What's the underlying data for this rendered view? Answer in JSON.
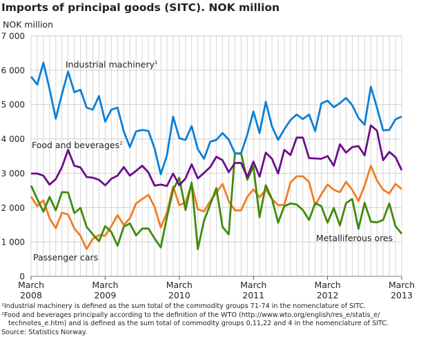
{
  "chart_data": {
    "type": "line",
    "title": "Imports of principal goods (SITC). NOK million",
    "ylabel": "NOK million",
    "xlabel": "",
    "ylim": [
      0,
      7000
    ],
    "yticks": [
      0,
      1000,
      2000,
      3000,
      4000,
      5000,
      6000,
      7000
    ],
    "ytick_labels": [
      "0",
      "1 000",
      "2 000",
      "3 000",
      "4 000",
      "5 000",
      "6 000",
      "7 000"
    ],
    "x_start": "March 2008",
    "x_end": "March 2013",
    "x_frequency": "monthly",
    "xtick_labels": [
      {
        "month": "March",
        "year": "2008",
        "index": 0
      },
      {
        "month": "March",
        "year": "2009",
        "index": 12
      },
      {
        "month": "March",
        "year": "2010",
        "index": 24
      },
      {
        "month": "March",
        "year": "2011",
        "index": 36
      },
      {
        "month": "March",
        "year": "2012",
        "index": 48
      },
      {
        "month": "March",
        "year": "2013",
        "index": 60
      }
    ],
    "grid": true,
    "series": [
      {
        "name": "Industrial machinery",
        "sup": "1",
        "color": "#0b7fd6",
        "values": [
          5810,
          5580,
          6220,
          5450,
          4590,
          5310,
          5960,
          5360,
          5430,
          4910,
          4850,
          5250,
          4500,
          4850,
          4910,
          4220,
          3760,
          4220,
          4260,
          4230,
          3720,
          2970,
          3520,
          4650,
          4020,
          3970,
          4370,
          3700,
          3420,
          3920,
          3970,
          4170,
          3980,
          3580,
          3580,
          4120,
          4800,
          4170,
          5080,
          4360,
          3970,
          4280,
          4550,
          4710,
          4580,
          4710,
          4230,
          5030,
          5110,
          4920,
          5040,
          5190,
          4980,
          4610,
          4410,
          5520,
          4910,
          4250,
          4260,
          4570,
          4650
        ]
      },
      {
        "name": "Food and beverages",
        "sup": "2",
        "color": "#6c0c8c",
        "values": [
          2990,
          2990,
          2930,
          2670,
          2830,
          3180,
          3680,
          3220,
          3170,
          2890,
          2870,
          2810,
          2650,
          2840,
          2930,
          3180,
          2930,
          3070,
          3220,
          3020,
          2640,
          2670,
          2630,
          2990,
          2650,
          2850,
          3260,
          2850,
          3010,
          3180,
          3480,
          3380,
          3030,
          3300,
          3300,
          2890,
          3340,
          2900,
          3600,
          3420,
          2990,
          3680,
          3530,
          4040,
          4040,
          3440,
          3430,
          3420,
          3500,
          3220,
          3840,
          3600,
          3760,
          3790,
          3520,
          4390,
          4240,
          3380,
          3620,
          3470,
          3090
        ]
      },
      {
        "name": "Passenger cars",
        "sup": "",
        "color": "#f07d22",
        "values": [
          2320,
          2040,
          2210,
          1690,
          1400,
          1850,
          1800,
          1390,
          1180,
          790,
          1090,
          1200,
          1180,
          1460,
          1780,
          1490,
          1690,
          2120,
          2250,
          2370,
          2020,
          1420,
          1860,
          2620,
          2070,
          2150,
          2690,
          1950,
          1890,
          2190,
          2430,
          2690,
          2190,
          1920,
          1920,
          2310,
          2530,
          2300,
          2530,
          2250,
          2070,
          2080,
          2730,
          2910,
          2910,
          2750,
          2070,
          2390,
          2670,
          2520,
          2450,
          2750,
          2520,
          2190,
          2640,
          3220,
          2790,
          2520,
          2410,
          2690,
          2540
        ]
      },
      {
        "name": "Metalliferous ores",
        "sup": "",
        "color": "#3f8a0c",
        "values": [
          2640,
          2250,
          1880,
          2310,
          1920,
          2450,
          2440,
          1840,
          1990,
          1440,
          1220,
          1020,
          1460,
          1290,
          890,
          1440,
          1540,
          1190,
          1390,
          1390,
          1100,
          840,
          1720,
          2520,
          2870,
          1930,
          2730,
          790,
          1620,
          2090,
          2570,
          1440,
          1220,
          3570,
          3570,
          2810,
          3200,
          1720,
          2650,
          2250,
          1560,
          2040,
          2120,
          2090,
          1930,
          1640,
          2130,
          2040,
          1560,
          1990,
          1480,
          2130,
          2250,
          1380,
          2140,
          1590,
          1570,
          1640,
          2120,
          1460,
          1240
        ]
      }
    ]
  },
  "footnotes": [
    "¹Industrial machinery is defined as the sum total of the commodity groups 71-74 in the nomenclature of SITC.",
    "²Food and beverages principally according to the definition of the WTO (http://www.wto.org/english/res_e/statis_e/",
    "technotes_e.htm) and is defined as the sum total of commodity groups 0,11,22 and 4 in the nomenclature of SITC.",
    "Source: Statistics Norway."
  ]
}
